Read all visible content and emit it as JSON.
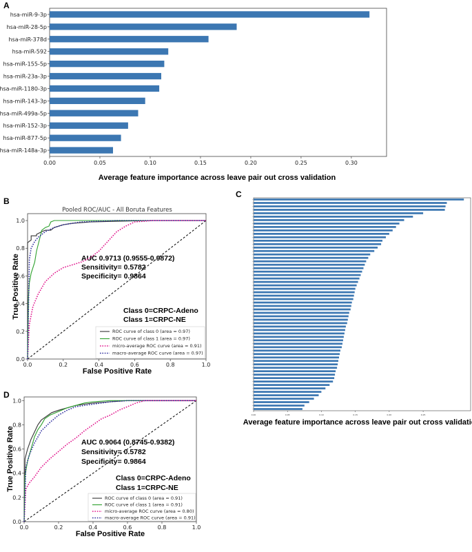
{
  "panel_labels": {
    "a": "A",
    "b": "B",
    "c": "C",
    "d": "D"
  },
  "chart_data": [
    {
      "id": "A",
      "type": "bar",
      "orientation": "horizontal",
      "categories": [
        "hsa-miR-9-3p",
        "hsa-miR-28-5p",
        "hsa-miR-378d",
        "hsa-miR-592",
        "hsa-miR-155-5p",
        "hsa-miR-23a-3p",
        "hsa-miR-1180-3p",
        "hsa-miR-143-3p",
        "hsa-miR-499a-5p",
        "hsa-miR-152-3p",
        "hsa-miR-877-5p",
        "hsa-miR-148a-3p"
      ],
      "values": [
        0.318,
        0.186,
        0.158,
        0.118,
        0.114,
        0.111,
        0.109,
        0.095,
        0.088,
        0.078,
        0.071,
        0.063
      ],
      "xlabel": "Average feature importance across leave pair out cross validation",
      "xlim": [
        0,
        0.335
      ],
      "xticks": [
        0.0,
        0.05,
        0.1,
        0.15,
        0.2,
        0.25,
        0.3
      ],
      "xtick_labels": [
        "0.00",
        "0.05",
        "0.10",
        "0.15",
        "0.20",
        "0.25",
        "0.30"
      ],
      "bar_color": "#3c77b2"
    },
    {
      "id": "B",
      "type": "line",
      "title": "Pooled ROC/AUC - All Boruta Features",
      "xlabel": "False Positive Rate",
      "ylabel": "True Positive Rate",
      "xlim": [
        0,
        1
      ],
      "ylim": [
        0,
        1.05
      ],
      "ticks": [
        0.0,
        0.2,
        0.4,
        0.6,
        0.8,
        1.0
      ],
      "tick_labels": [
        "0.0",
        "0.2",
        "0.4",
        "0.6",
        "0.8",
        "1.0"
      ],
      "stats": [
        "AUC 0.9713 (0.9555-0.9872)",
        "Sensitivity= 0.5782",
        "Specificity= 0.9864"
      ],
      "class_labels": [
        "Class 0=CRPC-Adeno",
        "Class 1=CRPC-NE"
      ],
      "series": [
        {
          "name": "ROC curve of class 0 (area = 0.97)",
          "color": "#333333",
          "dash": "solid",
          "x": [
            0,
            0,
            0.02,
            0.02,
            0.05,
            0.05,
            0.08,
            0.1,
            0.13,
            0.15,
            0.2,
            0.25,
            0.35,
            0.5,
            0.7,
            1.0
          ],
          "y": [
            0,
            0.84,
            0.86,
            0.89,
            0.89,
            0.9,
            0.92,
            0.93,
            0.93,
            0.95,
            0.97,
            0.98,
            0.99,
            0.995,
            1.0,
            1.0
          ]
        },
        {
          "name": "ROC curve of class 1 (area = 0.97)",
          "color": "#2ca02c",
          "dash": "solid",
          "x": [
            0,
            0.005,
            0.01,
            0.02,
            0.03,
            0.04,
            0.05,
            0.07,
            0.08,
            0.1,
            0.12,
            0.13,
            0.15,
            0.2,
            0.3,
            1.0
          ],
          "y": [
            0,
            0.45,
            0.55,
            0.62,
            0.66,
            0.7,
            0.78,
            0.88,
            0.93,
            0.95,
            0.96,
            0.99,
            1.0,
            1.0,
            1.0,
            1.0
          ]
        },
        {
          "name": "micro-average ROC curve (area = 0.91)",
          "color": "#e0108a",
          "dash": "dotted",
          "x": [
            0,
            0.01,
            0.03,
            0.06,
            0.1,
            0.15,
            0.2,
            0.25,
            0.3,
            0.35,
            0.4,
            0.45,
            0.5,
            0.55,
            0.6,
            0.7,
            1.0
          ],
          "y": [
            0,
            0.25,
            0.38,
            0.47,
            0.56,
            0.62,
            0.66,
            0.68,
            0.7,
            0.73,
            0.78,
            0.85,
            0.92,
            0.96,
            0.99,
            1.0,
            1.0
          ]
        },
        {
          "name": "macro-average ROC curve (area = 0.97)",
          "color": "#2e2e9e",
          "dash": "dotted",
          "x": [
            0,
            0.01,
            0.02,
            0.04,
            0.06,
            0.1,
            0.15,
            0.2,
            0.3,
            0.5,
            1.0
          ],
          "y": [
            0,
            0.72,
            0.8,
            0.85,
            0.88,
            0.92,
            0.95,
            0.97,
            0.99,
            1.0,
            1.0
          ]
        },
        {
          "name": "chance",
          "color": "#111111",
          "dash": "dashed",
          "x": [
            0,
            1
          ],
          "y": [
            0,
            1
          ]
        }
      ]
    },
    {
      "id": "C",
      "type": "bar",
      "orientation": "horizontal",
      "n_bars": 62,
      "values": [
        0.31,
        0.285,
        0.283,
        0.282,
        0.25,
        0.235,
        0.222,
        0.215,
        0.21,
        0.205,
        0.2,
        0.195,
        0.19,
        0.188,
        0.183,
        0.178,
        0.172,
        0.169,
        0.166,
        0.164,
        0.162,
        0.16,
        0.158,
        0.156,
        0.154,
        0.152,
        0.15,
        0.149,
        0.148,
        0.147,
        0.145,
        0.144,
        0.143,
        0.141,
        0.14,
        0.139,
        0.138,
        0.136,
        0.135,
        0.134,
        0.133,
        0.132,
        0.131,
        0.13,
        0.128,
        0.127,
        0.126,
        0.125,
        0.124,
        0.123,
        0.121,
        0.12,
        0.119,
        0.117,
        0.112,
        0.106,
        0.1,
        0.096,
        0.089,
        0.082,
        0.075,
        0.072
      ],
      "xlabel": "Average feature importance across leave pair out cross validation",
      "xlim": [
        0,
        0.32
      ],
      "xticks": [
        0.0,
        0.05,
        0.1,
        0.15,
        0.2,
        0.25
      ],
      "xtick_labels": [
        "0.00",
        "0.05",
        "0.10",
        "0.15",
        "0.20",
        "0.25"
      ],
      "bar_color": "#3c77b2"
    },
    {
      "id": "D",
      "type": "line",
      "xlabel": "False Positive Rate",
      "ylabel": "True Positive Rate",
      "xlim": [
        0,
        1
      ],
      "ylim": [
        0,
        1.03
      ],
      "ticks": [
        0.0,
        0.2,
        0.4,
        0.6,
        0.8,
        1.0
      ],
      "tick_labels": [
        "0.0",
        "0.2",
        "0.4",
        "0.6",
        "0.8",
        "1.0"
      ],
      "stats": [
        "AUC 0.9064 (0.8745-0.9382)",
        "Sensitivity= 0.5782",
        "Specificity= 0.9864"
      ],
      "class_labels": [
        "Class 0=CRPC-Adeno",
        "Class 1=CRPC-NE"
      ],
      "series": [
        {
          "name": "ROC curve of class 0 (area = 0.91)",
          "color": "#333333",
          "dash": "solid",
          "x": [
            0,
            0.005,
            0.02,
            0.04,
            0.06,
            0.08,
            0.1,
            0.13,
            0.16,
            0.2,
            0.25,
            0.3,
            0.35,
            0.4,
            0.5,
            0.6,
            1.0
          ],
          "y": [
            0,
            0.52,
            0.6,
            0.68,
            0.74,
            0.8,
            0.84,
            0.87,
            0.9,
            0.92,
            0.94,
            0.96,
            0.97,
            0.98,
            0.99,
            1.0,
            1.0
          ]
        },
        {
          "name": "ROC curve of class 1 (area = 0.91)",
          "color": "#2ca02c",
          "dash": "solid",
          "x": [
            0,
            0.005,
            0.02,
            0.04,
            0.06,
            0.08,
            0.1,
            0.12,
            0.15,
            0.2,
            0.25,
            0.3,
            0.35,
            0.4,
            0.5,
            0.6,
            1.0
          ],
          "y": [
            0,
            0.38,
            0.5,
            0.6,
            0.7,
            0.76,
            0.8,
            0.85,
            0.88,
            0.91,
            0.94,
            0.96,
            0.98,
            0.99,
            1.0,
            1.0,
            1.0
          ]
        },
        {
          "name": "micro-average ROC curve (area = 0.80)",
          "color": "#e0108a",
          "dash": "dotted",
          "x": [
            0,
            0.01,
            0.03,
            0.06,
            0.1,
            0.15,
            0.2,
            0.25,
            0.3,
            0.35,
            0.4,
            0.45,
            0.5,
            0.55,
            0.6,
            0.65,
            0.7,
            1.0
          ],
          "y": [
            0,
            0.27,
            0.32,
            0.37,
            0.45,
            0.52,
            0.58,
            0.64,
            0.69,
            0.75,
            0.8,
            0.85,
            0.88,
            0.92,
            0.95,
            0.98,
            1.0,
            1.0
          ]
        },
        {
          "name": "macro-average ROC curve (area = 0.91)",
          "color": "#2e2e9e",
          "dash": "dotted",
          "x": [
            0,
            0.01,
            0.03,
            0.06,
            0.1,
            0.15,
            0.2,
            0.25,
            0.3,
            0.4,
            0.5,
            0.6,
            1.0
          ],
          "y": [
            0,
            0.45,
            0.55,
            0.65,
            0.75,
            0.82,
            0.88,
            0.92,
            0.95,
            0.97,
            0.99,
            1.0,
            1.0
          ]
        },
        {
          "name": "chance",
          "color": "#111111",
          "dash": "dashed",
          "x": [
            0,
            1
          ],
          "y": [
            0,
            1
          ]
        }
      ]
    }
  ]
}
